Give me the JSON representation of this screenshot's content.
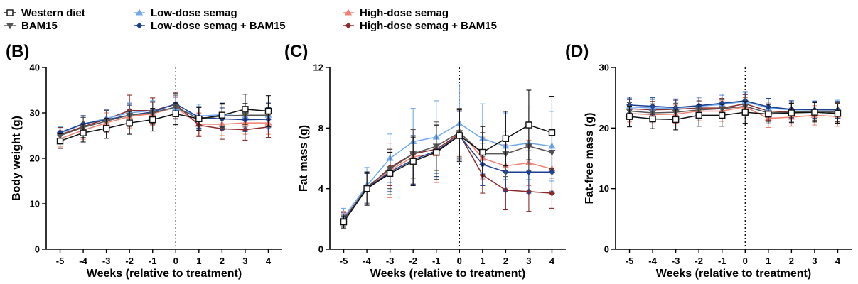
{
  "legend": {
    "items": [
      {
        "label": "Western diet",
        "color": "#111111",
        "marker": "square-open"
      },
      {
        "label": "BAM15",
        "color": "#555555",
        "marker": "triangle-down"
      },
      {
        "label": "Low-dose semag",
        "color": "#6fa8ee",
        "marker": "triangle-up"
      },
      {
        "label": "Low-dose semag + BAM15",
        "color": "#1d3f8f",
        "marker": "diamond"
      },
      {
        "label": "High-dose semag",
        "color": "#f08070",
        "marker": "triangle-up"
      },
      {
        "label": "High-dose semag + BAM15",
        "color": "#8b2a2a",
        "marker": "diamond"
      }
    ]
  },
  "chart_data": [
    {
      "type": "line",
      "panel": "(B)",
      "xlabel": "Weeks (relative to treatment)",
      "ylabel": "Body weight (g)",
      "x": [
        -5,
        -4,
        -3,
        -2,
        -1,
        0,
        1,
        2,
        3,
        4
      ],
      "xlim": [
        -5.6,
        4.6
      ],
      "ylim": [
        0,
        40
      ],
      "yticks": [
        0,
        10,
        20,
        30,
        40
      ],
      "reference_line_x": 0,
      "series": [
        {
          "name": "High-dose semag",
          "values": [
            24.3,
            26.2,
            27.8,
            29.2,
            29.8,
            31.2,
            27.5,
            27.5,
            27.8,
            27.8
          ],
          "err": [
            1.8,
            2.0,
            2.2,
            2.5,
            2.5,
            2.4,
            2.5,
            2.5,
            2.5,
            2.5
          ]
        },
        {
          "name": "High-dose semag + BAM15",
          "values": [
            25.2,
            27.0,
            28.6,
            30.5,
            30.5,
            31.9,
            27.3,
            26.5,
            26.3,
            26.9
          ],
          "err": [
            1.6,
            2.0,
            2.2,
            3.4,
            2.8,
            2.5,
            2.5,
            2.3,
            2.3,
            2.3
          ]
        },
        {
          "name": "Low-dose semag",
          "values": [
            25.5,
            27.5,
            28.8,
            30.0,
            30.5,
            31.0,
            29.3,
            29.6,
            29.3,
            29.5
          ],
          "err": [
            1.5,
            1.8,
            2.0,
            2.2,
            2.2,
            2.4,
            2.6,
            2.6,
            2.8,
            2.8
          ]
        },
        {
          "name": "Low-dose semag + BAM15",
          "values": [
            25.7,
            27.6,
            28.5,
            29.5,
            30.2,
            32.0,
            29.0,
            28.7,
            28.5,
            28.6
          ],
          "err": [
            1.4,
            1.8,
            2.0,
            2.2,
            2.2,
            2.2,
            2.4,
            2.4,
            2.6,
            2.6
          ]
        },
        {
          "name": "BAM15",
          "values": [
            25.0,
            26.8,
            28.2,
            29.5,
            30.0,
            31.3,
            28.7,
            29.3,
            29.5,
            29.5
          ],
          "err": [
            1.5,
            2.2,
            2.4,
            2.5,
            2.5,
            2.6,
            2.5,
            2.6,
            2.6,
            2.6
          ]
        },
        {
          "name": "Western diet",
          "values": [
            23.8,
            25.6,
            26.6,
            27.8,
            28.5,
            29.8,
            28.7,
            29.5,
            30.8,
            30.4
          ],
          "err": [
            1.6,
            2.0,
            2.2,
            2.5,
            2.5,
            2.4,
            2.5,
            2.6,
            3.3,
            3.4
          ]
        }
      ]
    },
    {
      "type": "line",
      "panel": "(C)",
      "xlabel": "Weeks (relative to treatment)",
      "ylabel": "Fat mass (g)",
      "x": [
        -5,
        -4,
        -3,
        -2,
        -1,
        0,
        1,
        2,
        3,
        4
      ],
      "xlim": [
        -5.6,
        4.6
      ],
      "ylim": [
        0,
        12
      ],
      "yticks": [
        0,
        4,
        8,
        12
      ],
      "reference_line_x": 0,
      "series": [
        {
          "name": "High-dose semag",
          "values": [
            2.0,
            4.0,
            5.2,
            6.1,
            6.3,
            7.8,
            6.0,
            5.5,
            5.7,
            5.3
          ],
          "err": [
            0.5,
            1.1,
            1.8,
            1.8,
            1.9,
            1.6,
            1.4,
            1.4,
            1.5,
            1.4
          ]
        },
        {
          "name": "High-dose semag + BAM15",
          "values": [
            2.0,
            4.0,
            5.4,
            6.3,
            6.6,
            7.6,
            4.9,
            3.9,
            3.8,
            3.7
          ],
          "err": [
            0.4,
            1.0,
            1.2,
            1.6,
            1.6,
            1.6,
            1.2,
            1.3,
            1.3,
            1.0
          ]
        },
        {
          "name": "Low-dose semag",
          "values": [
            2.1,
            4.2,
            6.0,
            7.1,
            7.4,
            8.3,
            7.3,
            6.8,
            7.0,
            6.8
          ],
          "err": [
            0.6,
            1.2,
            1.6,
            2.2,
            2.4,
            2.6,
            2.3,
            2.2,
            2.4,
            2.3
          ]
        },
        {
          "name": "Low-dose semag + BAM15",
          "values": [
            1.9,
            4.0,
            5.1,
            5.9,
            6.5,
            7.5,
            5.6,
            5.1,
            5.1,
            5.1
          ],
          "err": [
            0.4,
            1.0,
            1.3,
            1.6,
            1.7,
            1.6,
            1.4,
            1.3,
            1.4,
            1.3
          ]
        },
        {
          "name": "BAM15",
          "values": [
            1.9,
            4.1,
            5.3,
            6.3,
            6.8,
            7.7,
            6.3,
            6.3,
            6.8,
            6.4
          ],
          "err": [
            0.4,
            1.0,
            1.3,
            1.6,
            1.6,
            1.6,
            1.4,
            1.5,
            1.6,
            1.5
          ]
        },
        {
          "name": "Western diet",
          "values": [
            1.8,
            4.0,
            5.0,
            5.8,
            6.4,
            7.5,
            6.4,
            7.3,
            8.2,
            7.7
          ],
          "err": [
            0.4,
            1.1,
            1.4,
            1.6,
            1.8,
            1.7,
            1.7,
            1.8,
            2.3,
            2.4
          ]
        }
      ]
    },
    {
      "type": "line",
      "panel": "(D)",
      "xlabel": "Weeks (relative to treatment)",
      "ylabel": "Fat-free mass (g)",
      "x": [
        -5,
        -4,
        -3,
        -2,
        -1,
        0,
        1,
        2,
        3,
        4
      ],
      "xlim": [
        -5.6,
        4.6
      ],
      "ylim": [
        0,
        30
      ],
      "yticks": [
        0,
        10,
        20,
        30
      ],
      "reference_line_x": 0,
      "series": [
        {
          "name": "High-dose semag",
          "values": [
            22.4,
            22.2,
            22.3,
            22.8,
            22.8,
            23.5,
            21.6,
            21.8,
            22.1,
            21.9
          ],
          "err": [
            1.4,
            1.5,
            1.5,
            1.6,
            1.7,
            1.5,
            1.5,
            1.5,
            1.6,
            1.6
          ]
        },
        {
          "name": "High-dose semag + BAM15",
          "values": [
            23.2,
            23.0,
            23.1,
            23.3,
            23.3,
            24.0,
            22.8,
            22.6,
            22.8,
            22.6
          ],
          "err": [
            1.5,
            1.4,
            1.5,
            1.5,
            1.6,
            1.5,
            1.5,
            1.5,
            1.6,
            1.6
          ]
        },
        {
          "name": "Low-dose semag",
          "values": [
            23.5,
            23.3,
            23.3,
            23.6,
            23.9,
            24.4,
            23.3,
            23.0,
            23.0,
            23.1
          ],
          "err": [
            1.4,
            1.4,
            1.4,
            1.5,
            1.5,
            1.5,
            1.5,
            1.5,
            1.5,
            1.5
          ]
        },
        {
          "name": "Low-dose semag + BAM15",
          "values": [
            23.8,
            23.6,
            23.4,
            23.7,
            24.1,
            24.5,
            23.5,
            23.1,
            23.0,
            23.0
          ],
          "err": [
            1.3,
            1.4,
            1.4,
            1.4,
            1.5,
            1.5,
            1.4,
            1.4,
            1.4,
            1.4
          ]
        },
        {
          "name": "BAM15",
          "values": [
            22.8,
            22.5,
            22.6,
            23.0,
            23.2,
            23.6,
            22.5,
            22.6,
            22.8,
            22.6
          ],
          "err": [
            1.4,
            1.5,
            1.5,
            1.5,
            1.5,
            1.5,
            1.5,
            1.5,
            1.5,
            1.5
          ]
        },
        {
          "name": "Western diet",
          "values": [
            21.9,
            21.5,
            21.4,
            22.1,
            22.1,
            22.6,
            22.3,
            22.5,
            22.6,
            22.4
          ],
          "err": [
            1.7,
            1.6,
            1.7,
            1.8,
            1.8,
            1.8,
            1.6,
            1.6,
            1.6,
            1.6
          ]
        }
      ]
    }
  ]
}
